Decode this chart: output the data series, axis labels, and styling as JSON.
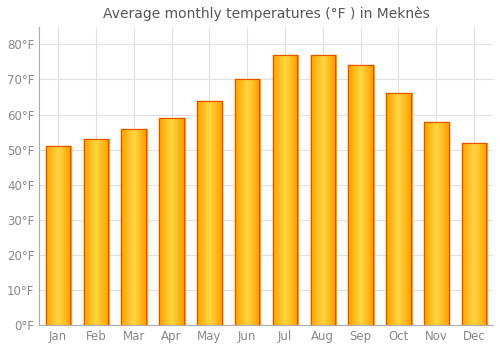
{
  "title": "Average monthly temperatures (°F ) in Meknès",
  "months": [
    "Jan",
    "Feb",
    "Mar",
    "Apr",
    "May",
    "Jun",
    "Jul",
    "Aug",
    "Sep",
    "Oct",
    "Nov",
    "Dec"
  ],
  "values": [
    51,
    53,
    56,
    59,
    64,
    70,
    77,
    77,
    74,
    66,
    58,
    52
  ],
  "bar_color_center": "#FFD54F",
  "bar_color_edge": "#FFA000",
  "background_color": "#ffffff",
  "plot_bg_color": "#ffffff",
  "ylim": [
    0,
    85
  ],
  "yticks": [
    0,
    10,
    20,
    30,
    40,
    50,
    60,
    70,
    80
  ],
  "ytick_labels": [
    "0°F",
    "10°F",
    "20°F",
    "30°F",
    "40°F",
    "50°F",
    "60°F",
    "70°F",
    "80°F"
  ],
  "grid_color": "#e0e0e0",
  "title_fontsize": 10,
  "tick_fontsize": 8.5
}
